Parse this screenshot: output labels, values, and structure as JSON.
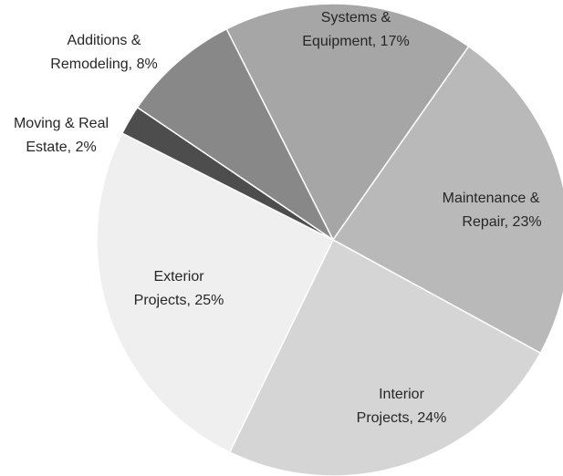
{
  "chart_data": {
    "type": "pie",
    "labels": [
      [
        "Systems &",
        "Equipment, 17%"
      ],
      [
        "Maintenance &",
        "Repair, 23%"
      ],
      [
        "Interior",
        "Projects, 24%"
      ],
      [
        "Exterior",
        "Projects, 25%"
      ],
      [
        "Moving & Real",
        "Estate, 2%"
      ],
      [
        "Additions &",
        "Remodeling, 8%"
      ]
    ],
    "values": [
      17,
      23,
      24,
      25,
      2,
      8
    ],
    "colors": [
      "#a6a6a6",
      "#b9b9b9",
      "#d5d5d5",
      "#efefef",
      "#4d4d4d",
      "#888888"
    ]
  }
}
